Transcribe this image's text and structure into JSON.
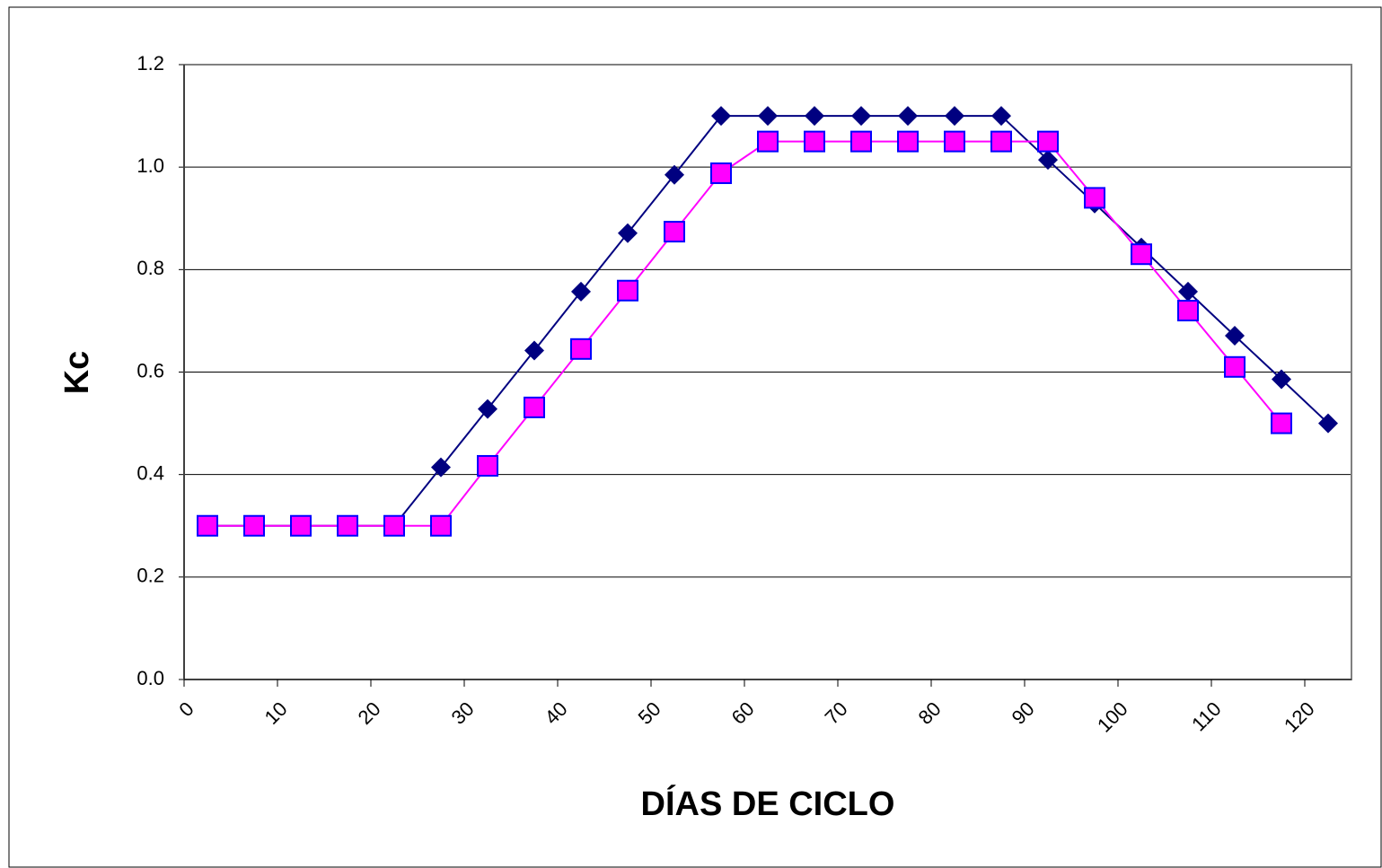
{
  "chart_data": {
    "type": "scatter",
    "x_label": "DÍAS DE CICLO",
    "y_label": "Kc",
    "xlim": [
      0,
      125
    ],
    "xticks": [
      0,
      10,
      20,
      30,
      40,
      50,
      60,
      70,
      80,
      90,
      100,
      110,
      120
    ],
    "ylim": [
      0,
      1.2
    ],
    "yticks": [
      {
        "value": 0,
        "label": "0.0"
      },
      0.2,
      0.4,
      0.6,
      0.8,
      {
        "value": 1,
        "label": "1.0"
      },
      1.2
    ],
    "grid": true,
    "series": [
      {
        "color": "#000080",
        "marker": "diamond",
        "x": [
          2.5,
          7.5,
          12.5,
          17.5,
          22.5,
          27.5,
          32.5,
          37.5,
          42.5,
          47.5,
          52.5,
          57.5,
          62.5,
          67.5,
          72.5,
          77.5,
          82.5,
          87.5,
          92.5,
          97.5,
          102.5,
          107.5,
          112.5,
          117.5,
          122.5
        ],
        "values": [
          0.3,
          0.3,
          0.3,
          0.3,
          0.3,
          0.414,
          0.528,
          0.642,
          0.757,
          0.871,
          0.985,
          1.1,
          1.1,
          1.1,
          1.1,
          1.1,
          1.1,
          1.1,
          1.014,
          0.929,
          0.843,
          0.757,
          0.671,
          0.586,
          0.5
        ]
      },
      {
        "color": "#ff00ff",
        "marker": "square",
        "x": [
          2.5,
          7.5,
          12.5,
          17.5,
          22.5,
          27.5,
          32.5,
          37.5,
          42.5,
          47.5,
          52.5,
          57.5,
          62.5,
          67.5,
          72.5,
          77.5,
          82.5,
          87.5,
          92.5,
          97.5,
          102.5,
          107.5,
          112.5,
          117.5
        ],
        "values": [
          0.3,
          0.3,
          0.3,
          0.3,
          0.3,
          0.3,
          0.417,
          0.531,
          0.645,
          0.759,
          0.874,
          0.988,
          1.05,
          1.05,
          1.05,
          1.05,
          1.05,
          1.05,
          1.05,
          0.94,
          0.83,
          0.72,
          0.61,
          0.5
        ]
      }
    ]
  }
}
